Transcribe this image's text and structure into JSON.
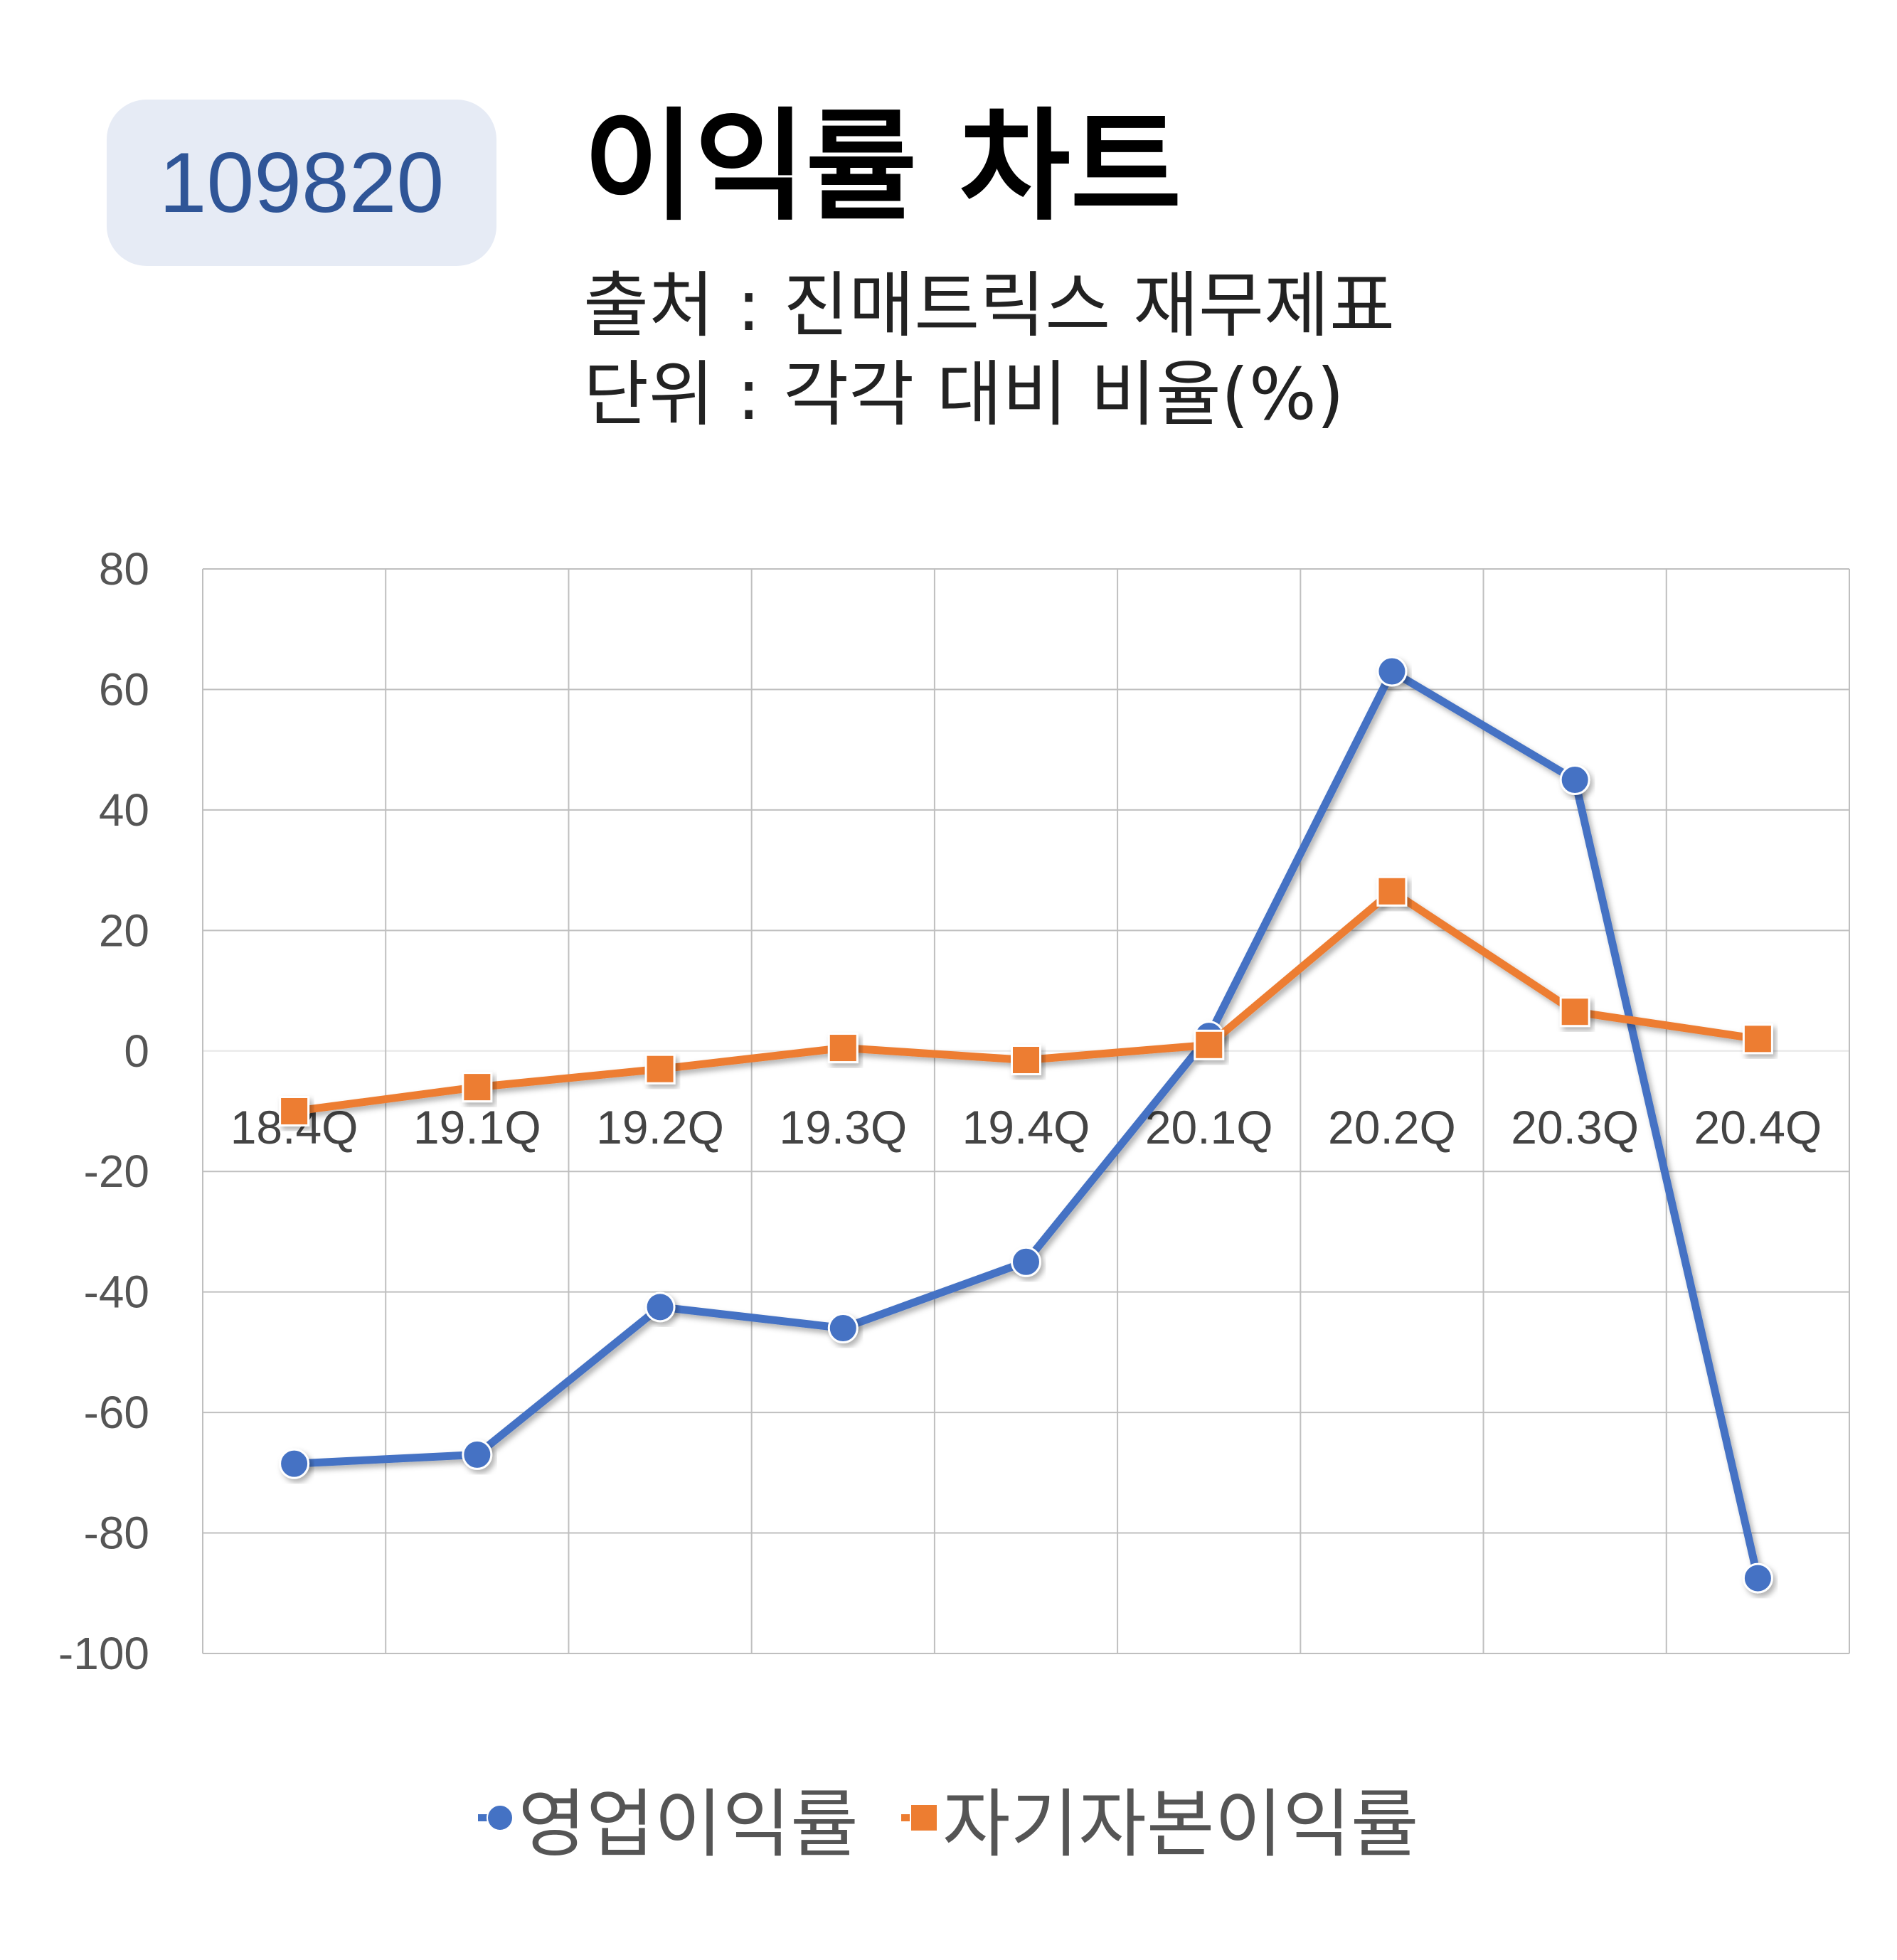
{
  "header": {
    "code": "109820",
    "title": "이익률 차트",
    "source": "출처 : 진매트릭스 재무제표",
    "unit": "단위 : 각각 대비 비율(%)"
  },
  "colors": {
    "operating": "#4472c4",
    "roe": "#ed7d31",
    "grid": "#bfbfbf"
  },
  "chart_data": {
    "type": "line",
    "title": "이익률 차트",
    "xlabel": "",
    "ylabel": "",
    "categories": [
      "18.4Q",
      "19.1Q",
      "19.2Q",
      "19.3Q",
      "19.4Q",
      "20.1Q",
      "20.2Q",
      "20.3Q",
      "20.4Q"
    ],
    "ylim": [
      -100,
      80
    ],
    "yticks": [
      "80",
      "60",
      "40",
      "20",
      "0",
      "-20",
      "-40",
      "-60",
      "-80",
      "-100"
    ],
    "grid": true,
    "legend_position": "bottom",
    "series": [
      {
        "name": "영업이익률",
        "marker": "circle",
        "values": [
          -68.5,
          -67,
          -42.5,
          -46,
          -35,
          2.5,
          63,
          45,
          -87.5
        ]
      },
      {
        "name": "자기자본이익률",
        "marker": "square",
        "values": [
          -10,
          -6,
          -3,
          0.5,
          -1.5,
          1,
          26.5,
          6.5,
          2
        ]
      }
    ]
  }
}
